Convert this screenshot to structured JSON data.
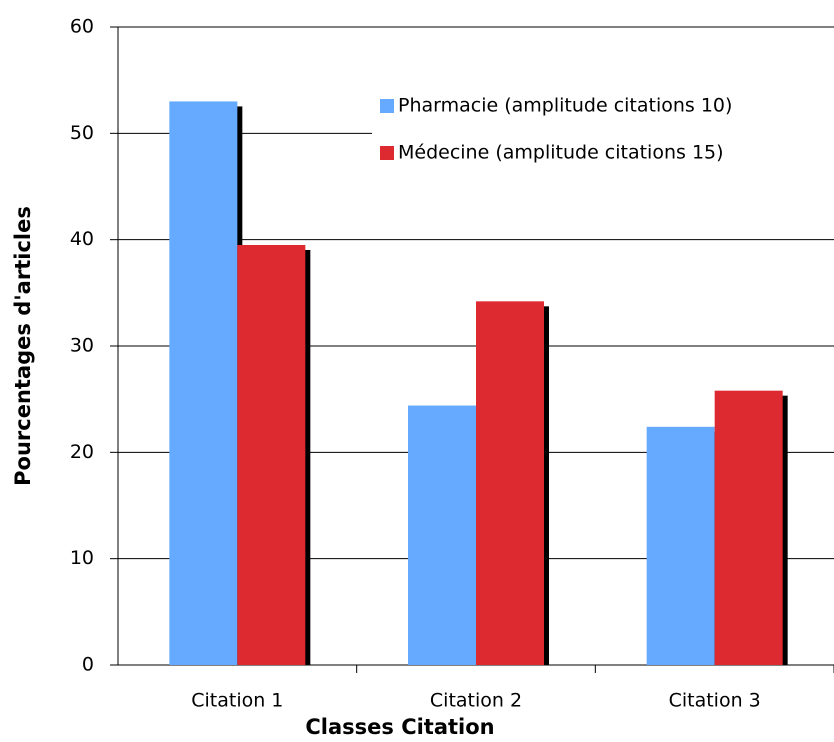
{
  "chart_data": {
    "type": "bar",
    "xlabel": "Classes Citation",
    "ylabel": "Pourcentages d'articles",
    "categories": [
      "Citation 1",
      "Citation 2",
      "Citation 3"
    ],
    "series": [
      {
        "name": "Pharmacie (amplitude citations 10)",
        "color": "#66aaff",
        "values": [
          53,
          24.4,
          22.4
        ]
      },
      {
        "name": "Médecine (amplitude citations 15)",
        "color": "#dd2a30",
        "values": [
          39.5,
          34.2,
          25.8
        ]
      }
    ],
    "ylim": [
      0,
      60
    ],
    "yticks": [
      0,
      10,
      20,
      30,
      40,
      50,
      60
    ],
    "grid": true,
    "legend": "upper right"
  }
}
